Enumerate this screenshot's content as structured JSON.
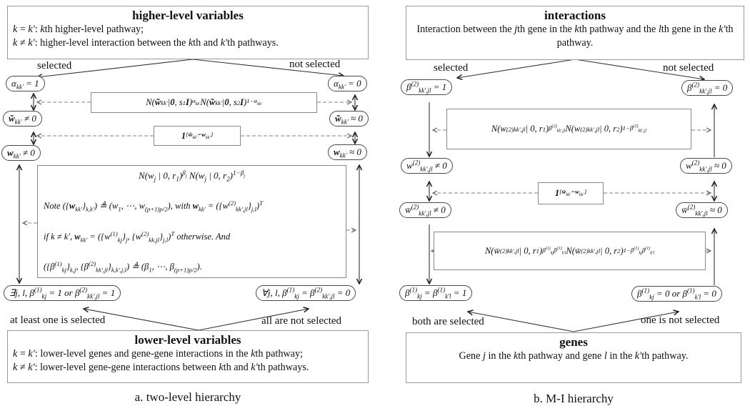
{
  "colors": {
    "solid_line": "#333333",
    "dashed_line": "#808080",
    "node_border": "#4a4a4a",
    "box_border": "#8a8a8a",
    "text": "#111111"
  },
  "left_diagram": {
    "top_box": {
      "title": "higher-level variables",
      "line1": "~k~ = ~k′~: ~k~th higher-level pathway;",
      "line2": "~k~ ≠ ~k′~: higher-level interaction between the ~k~th and ~k′~th pathways."
    },
    "labels": {
      "selected": "selected",
      "not_selected": "not selected",
      "at_least_one": "at least one is selected",
      "all_not": "all are not selected"
    },
    "nodes": {
      "alpha_selected": "α_{kk′} = 1",
      "alpha_not_selected": "α_{kk′} = 0",
      "wtilde_nonzero": "*w̃*_{kk′} ≠ 0",
      "wtilde_approx_zero": "*w̃*_{kk′} ≈ 0",
      "w_nonzero": "*w*_{kk′} ≠ 0",
      "w_approx_zero": "*w*_{kk′} ≈ 0",
      "exists_selected": "∃j, l, β^{(1)}_{kj} = 1 or β^{(2)}_{kk′,jl} = 1",
      "forall_not_selected": "∀j, l, β^{(1)}_{kj} = β^{(2)}_{kk′,jl} = 0"
    },
    "formulas": {
      "spike_slab_alpha": "N(*w̃*_{kk′} | *0*, s_{1}*I*)^{α_{kk′}} N(*w̃*_{kk′} | *0*, s_{2}*I*)^{1−α_{kk′}}",
      "indicator": "*1*_{{*w̃*_{kk′}=*w*_{kk′}}}",
      "big_line1": "N(w_{j} | 0, r_{1})^{β_{j}} N(w_{j} | 0, r_{2})^{1−β_{j}}",
      "big_line2": "Note ({*w*_{kk′}}_{k,k′}) ≜ (w_{1}, ⋯, w_{(p+1)p/2}), with *w*_{kk′} = ({w^{(2)}_{kk′,jl}}_{j,l})^{T}",
      "big_line3": "if k ≠ k′, *w*_{kk′} = ({w^{(1)}_{kj}}_{j}, {w^{(2)}_{kk,jl}}_{j,l})^{T} otherwise. And",
      "big_line4": "({β^{(1)}_{kj}}_{k,j}, {β^{(2)}_{kk′,jl}}_{k,k′,j,l}) ≜ (β_{1}, ⋯, β_{(p+1)p/2})."
    },
    "bottom_box": {
      "title": "lower-level variables",
      "line1": "~k~ = ~k′~: lower-level genes and gene-gene interactions in the ~k~th  pathway;",
      "line2": "~k~ ≠ ~k′~: lower-level gene-gene interactions between ~k~th and ~k′~th pathways."
    },
    "caption": "a. two-level hierarchy"
  },
  "right_diagram": {
    "top_box": {
      "title": "interactions",
      "line1": "Interaction between the ~j~th gene in the ~k~th pathway and the ~l~th gene in the ~k′~th pathway."
    },
    "labels": {
      "selected": "selected",
      "not_selected": "not selected",
      "both_selected": "both are selected",
      "one_not_selected": "one is not selected"
    },
    "nodes": {
      "beta2_selected": "β^{(2)}_{kk′,jl} = 1",
      "beta2_not_selected": "β^{(2)}_{kk′,jl} = 0",
      "w2_nonzero": "w^{(2)}_{kk′,jl} ≠ 0",
      "w2_approx_zero": "w^{(2)}_{kk′,jl} ≈ 0",
      "wbar2_nonzero": "w̄^{(2)}_{kk′,jl} ≠ 0",
      "wbar2_approx_zero": "w̄^{(2)}_{kk′,jl} ≈ 0",
      "beta1_both": "β^{(1)}_{kj} = β^{(1)}_{k′l} = 1",
      "beta1_one_not": "β^{(1)}_{kj} = 0 or β^{(1)}_{k′l} = 0"
    },
    "formulas": {
      "spike_slab_beta2": "N(w^{(2)}_{kk′,jl} | 0, r_{1})^{β^{(2)}_{kk′,jl}} N(w^{(2)}_{kk′,jl} | 0, r_{2})^{1−β^{(2)}_{kk′,jl}}",
      "indicator": "*1*_{{*w̄*_{kk′}=*w*_{kk′}}}",
      "spike_slab_beta1": "N(w̄^{(2)}_{kk′,jl} | 0, r_{1})^{β^{(1)}_{kj}β^{(1)}_{k′l}} N(w̄^{(2)}_{kk′,jl} | 0, r_{2})^{1−β^{(1)}_{kj}β^{(1)}_{k′l}}"
    },
    "bottom_box": {
      "title": "genes",
      "line1": "Gene ~j~ in the ~k~th pathway and gene ~l~ in the ~k′~th pathway."
    },
    "caption": "b. M-I hierarchy"
  }
}
